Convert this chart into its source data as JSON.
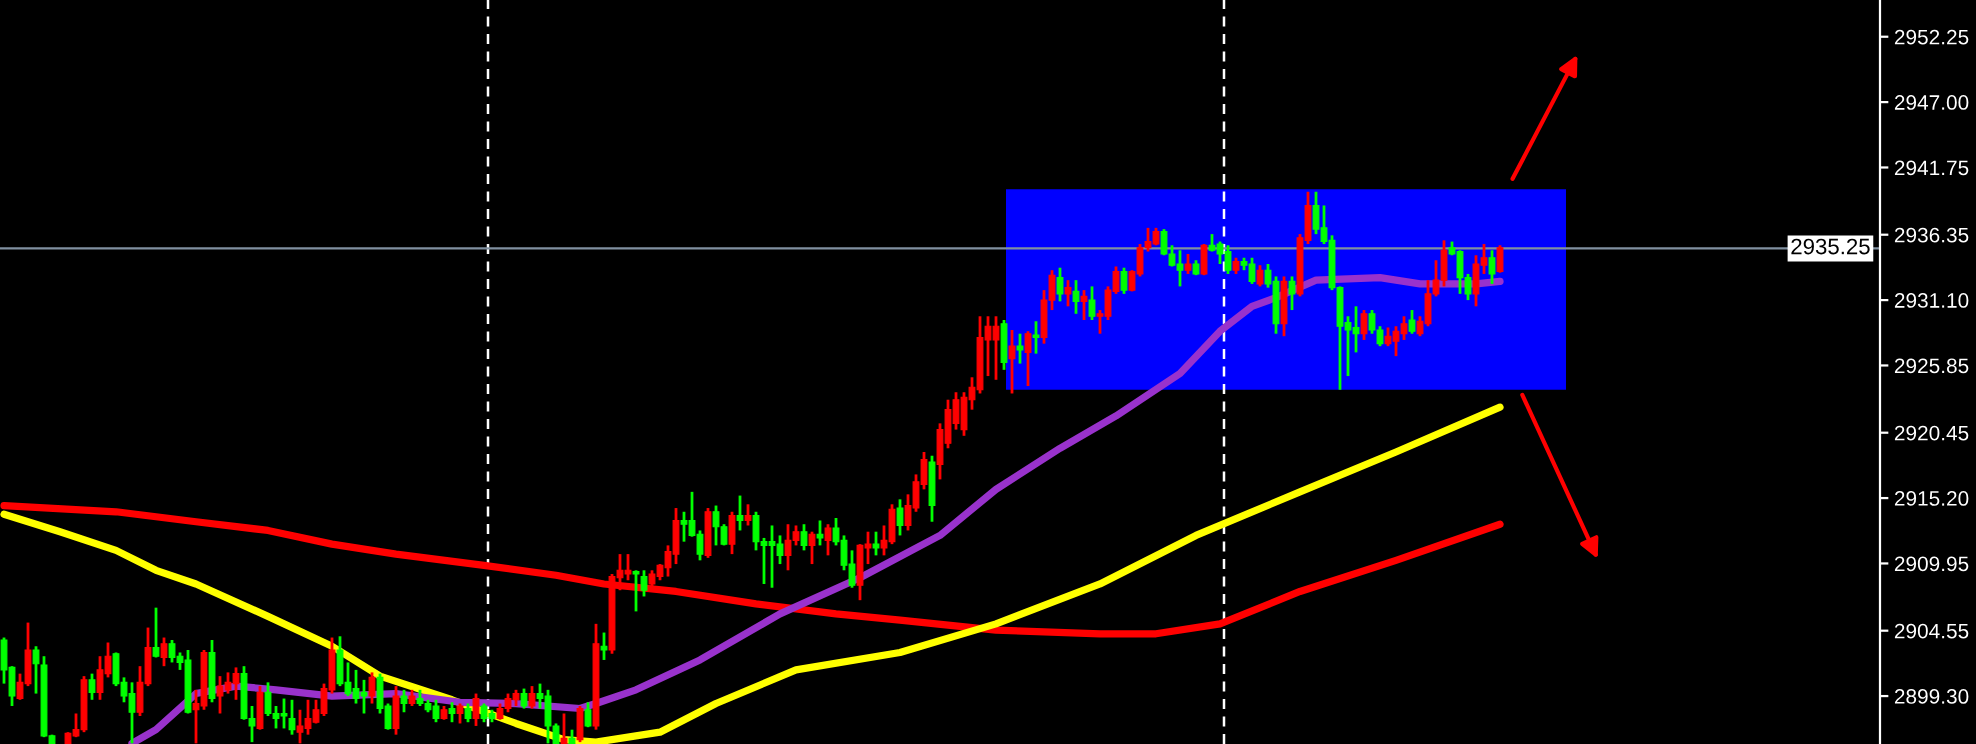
{
  "chart_data": {
    "type": "candlestick",
    "categories": [
      null,
      null,
      null,
      null,
      null,
      null,
      null,
      null,
      null,
      null,
      null,
      null,
      null,
      null,
      null,
      null,
      null,
      null,
      null,
      null,
      null,
      null,
      null,
      null,
      null,
      null,
      null,
      null,
      null,
      null,
      null,
      null,
      null,
      null,
      null,
      null,
      null,
      null,
      null,
      null,
      null,
      null,
      null,
      null,
      null,
      null,
      null,
      null,
      null,
      null,
      null,
      null,
      null,
      null,
      null,
      null,
      null,
      null,
      null,
      null,
      null,
      null,
      null,
      null,
      null,
      null,
      null,
      null,
      null,
      null,
      null,
      null,
      null,
      null,
      null,
      null,
      null,
      null,
      null,
      null,
      null,
      null,
      null,
      null,
      null,
      null,
      null,
      null,
      null,
      null,
      null,
      null,
      null,
      null,
      null,
      null,
      null,
      null,
      null,
      null,
      null,
      null,
      null,
      null,
      null,
      null,
      null,
      null,
      null,
      null,
      null,
      null,
      null,
      null,
      null,
      null,
      null,
      null,
      null,
      null,
      null,
      null,
      null,
      null,
      null,
      null,
      null,
      null,
      null,
      null,
      null,
      null,
      null,
      null,
      null,
      null,
      null,
      null,
      null,
      null,
      null,
      null,
      null,
      null,
      null,
      null,
      null,
      null,
      null,
      null,
      null,
      null,
      null,
      null,
      null,
      null,
      null,
      null,
      null,
      null,
      null,
      null,
      null,
      null,
      null,
      null,
      null,
      null,
      null,
      null,
      null,
      null,
      null,
      null,
      null,
      null,
      null,
      null,
      null,
      null,
      null,
      null,
      null,
      null,
      null,
      null,
      null,
      null,
      null,
      null,
      null,
      null,
      null,
      null,
      null,
      null,
      null,
      null,
      null,
      null,
      null,
      null,
      null,
      null,
      null,
      null,
      null,
      null,
      null,
      null,
      null,
      null,
      null,
      null,
      null,
      null,
      null,
      null,
      null,
      null,
      null,
      null,
      null,
      null,
      null,
      null,
      null,
      null,
      null,
      null,
      null,
      null,
      null,
      null,
      null
    ],
    "colors": [
      "#00ff00",
      "#00ff00",
      "#ff0000",
      "#ff0000",
      "#00ff00",
      "#00ff00",
      "#00ff00",
      null,
      "#ff0000",
      "#ff0000",
      "#ff0000",
      "#00ff00",
      "#ff0000",
      "#ff0000",
      "#00ff00",
      "#00ff00",
      "#00ff00",
      "#ff0000",
      "#ff0000",
      "#00ff00",
      "#ff0000",
      "#00ff00",
      "#00ff00",
      "#00ff00",
      "#ff0000",
      "#ff0000",
      "#00ff00",
      "#ff0000",
      "#ff0000",
      "#ff0000",
      "#00ff00",
      "#00ff00",
      "#ff0000",
      "#00ff00",
      "#00ff00",
      "#00ff00",
      "#00ff00",
      "#ff0000",
      "#ff0000",
      "#ff0000",
      "#ff0000",
      "#ff0000",
      "#00ff00",
      "#00ff00",
      "#00ff00",
      "#00ff00",
      "#ff0000",
      "#00ff00",
      "#00ff00",
      "#ff0000",
      "#00ff00",
      "#ff0000",
      "#00ff00",
      "#00ff00",
      "#00ff00",
      "#ff0000",
      "#00ff00",
      "#ff0000",
      "#00ff00",
      "#ff0000",
      "#00ff00",
      "#00ff00",
      "#ff0000",
      "#ff0000",
      "#ff0000",
      "#00ff00",
      "#ff0000",
      "#00ff00",
      "#00ff00",
      "#00ff00",
      "#ff0000",
      "#00ff00",
      "#ff0000",
      "#00ff00",
      "#ff0000",
      "#00ff00",
      "#ff0000",
      "#ff0000",
      "#ff0000",
      "#00ff00",
      "#00ff00",
      "#ff0000",
      "#ff0000",
      "#ff0000",
      "#ff0000",
      "#00ff00",
      "#00ff00",
      "#00ff00",
      "#ff0000",
      "#00ff00",
      "#00ff00",
      "#ff0000",
      "#00ff00",
      "#ff0000",
      "#00ff00",
      "#00ff00",
      "#00ff00",
      "#00ff00",
      "#ff0000",
      "#ff0000",
      "#00ff00",
      "#ff0000",
      "#00ff00",
      "#ff0000",
      "#00ff00",
      "#00ff00",
      "#00ff00",
      "#ff0000",
      "#ff0000",
      "#00ff00",
      "#ff0000",
      "#ff0000",
      "#00ff00",
      "#ff0000",
      "#ff0000",
      "#ff0000",
      "#00ff00",
      "#ff0000",
      "#ff0000",
      "#ff0000",
      "#ff0000",
      "#ff0000",
      "#ff0000",
      "#ff0000",
      "#ff0000",
      "#00ff00",
      "#ff0000",
      "#00ff00",
      "#ff0000",
      "#00ff00",
      "#ff0000",
      "#ff0000",
      "#00ff00",
      "#ff0000",
      "#00ff00",
      "#ff0000",
      "#00ff00",
      "#ff0000",
      "#ff0000",
      "#ff0000",
      "#00ff00",
      "#ff0000",
      "#ff0000",
      "#ff0000",
      "#ff0000",
      "#00ff00",
      "#00ff00",
      "#00ff00",
      "#ff0000",
      "#00ff00",
      "#ff0000",
      "#00ff00",
      "#00ff00",
      "#00ff00",
      "#ff0000",
      "#00ff00",
      "#00ff00",
      "#ff0000",
      "#00ff00",
      "#00ff00",
      "#ff0000",
      "#00ff00",
      "#ff0000",
      "#ff0000",
      "#00ff00",
      "#00ff00",
      "#00ff00",
      "#00ff00",
      "#00ff00",
      "#00ff00",
      "#ff0000",
      "#00ff00",
      "#00ff00",
      "#ff0000",
      "#ff0000",
      "#ff0000",
      "#00ff00",
      "#ff0000",
      "#ff0000",
      "#ff0000",
      "#ff0000",
      "#00ff00",
      "#00ff00",
      "#00ff00",
      "#ff0000",
      "#ff0000",
      "#00ff00",
      "#ff0000",
      null,
      null,
      null,
      null,
      null,
      null,
      null,
      null,
      null,
      null,
      null,
      null,
      null,
      null,
      null,
      null,
      null,
      null,
      null,
      null,
      null,
      null,
      null,
      null,
      null,
      null,
      null,
      null,
      null,
      null,
      null,
      null,
      null,
      null,
      null,
      null,
      null,
      null,
      null,
      null,
      null,
      null,
      null,
      null,
      null,
      null,
      null
    ],
    "ohlc": [
      [
        2901.4,
        2904.0,
        2900.3,
        2903.8
      ],
      [
        2899.3,
        2901.7,
        2898.5,
        2901.6
      ],
      [
        2900.4,
        2901.1,
        2899.0,
        2899.1
      ],
      [
        2903.0,
        2905.2,
        2900.1,
        2900.3
      ],
      [
        2901.9,
        2903.3,
        2899.5,
        2903.0
      ],
      [
        2896.1,
        2902.5,
        2896.0,
        2901.8
      ],
      [
        2895.5,
        2896.2,
        2895.5,
        2896.1
      ],
      null,
      [
        2896.3,
        2896.4,
        2895.5,
        2895.5
      ],
      [
        2896.6,
        2897.9,
        2896.0,
        2896.1
      ],
      [
        2900.6,
        2900.9,
        2896.4,
        2896.6
      ],
      [
        2899.6,
        2901.1,
        2899.0,
        2900.6
      ],
      [
        2901.4,
        2902.5,
        2899.0,
        2899.6
      ],
      [
        2902.5,
        2903.6,
        2900.8,
        2901.1
      ],
      [
        2900.3,
        2902.8,
        2900.1,
        2902.7
      ],
      [
        2899.3,
        2900.8,
        2898.8,
        2900.4
      ],
      [
        2898.0,
        2900.4,
        2895.5,
        2899.5
      ],
      [
        2900.4,
        2901.7,
        2897.7,
        2898.0
      ],
      [
        2903.2,
        2904.8,
        2900.1,
        2900.3
      ],
      [
        2902.5,
        2906.4,
        2902.4,
        2903.2
      ],
      [
        2903.5,
        2904.0,
        2901.7,
        2902.4
      ],
      [
        2902.4,
        2903.8,
        2902.0,
        2903.5
      ],
      [
        2902.0,
        2902.8,
        2901.4,
        2902.5
      ],
      [
        2898.0,
        2903.0,
        2897.9,
        2902.2
      ],
      [
        2898.7,
        2899.8,
        2895.5,
        2898.2
      ],
      [
        2902.8,
        2903.0,
        2898.2,
        2898.5
      ],
      [
        2899.1,
        2903.8,
        2898.8,
        2902.8
      ],
      [
        2900.1,
        2900.9,
        2897.9,
        2899.3
      ],
      [
        2900.4,
        2901.2,
        2899.5,
        2899.8
      ],
      [
        2901.1,
        2901.6,
        2899.0,
        2900.3
      ],
      [
        2897.5,
        2901.7,
        2897.4,
        2901.1
      ],
      [
        2896.9,
        2898.5,
        2895.6,
        2897.5
      ],
      [
        2899.6,
        2900.1,
        2896.6,
        2896.7
      ],
      [
        2897.9,
        2900.4,
        2897.7,
        2899.6
      ],
      [
        2897.5,
        2898.5,
        2896.7,
        2897.9
      ],
      [
        2897.7,
        2899.1,
        2896.7,
        2897.9
      ],
      [
        2896.6,
        2899.0,
        2896.2,
        2897.5
      ],
      [
        2896.9,
        2898.2,
        2895.5,
        2896.4
      ],
      [
        2897.5,
        2899.0,
        2896.2,
        2896.7
      ],
      [
        2898.2,
        2899.0,
        2897.1,
        2897.2
      ],
      [
        2899.9,
        2900.3,
        2897.7,
        2897.9
      ],
      [
        2903.0,
        2904.0,
        2899.5,
        2899.8
      ],
      [
        2900.3,
        2904.1,
        2900.1,
        2903.0
      ],
      [
        2899.5,
        2902.0,
        2899.3,
        2900.4
      ],
      [
        2899.1,
        2901.4,
        2898.7,
        2899.9
      ],
      [
        2899.3,
        2900.6,
        2897.9,
        2899.6
      ],
      [
        2900.8,
        2901.2,
        2898.7,
        2899.3
      ],
      [
        2898.3,
        2901.1,
        2897.9,
        2900.8
      ],
      [
        2896.7,
        2898.7,
        2896.6,
        2898.5
      ],
      [
        2899.3,
        2900.1,
        2896.2,
        2896.7
      ],
      [
        2898.7,
        2899.8,
        2898.0,
        2899.3
      ],
      [
        2899.3,
        2899.8,
        2898.5,
        2898.7
      ],
      [
        2898.7,
        2899.8,
        2898.5,
        2899.1
      ],
      [
        2898.2,
        2899.0,
        2898.0,
        2898.7
      ],
      [
        2897.5,
        2899.0,
        2897.2,
        2898.5
      ],
      [
        2898.2,
        2898.5,
        2897.4,
        2897.5
      ],
      [
        2897.9,
        2898.8,
        2897.2,
        2898.3
      ],
      [
        2898.5,
        2898.7,
        2897.1,
        2897.9
      ],
      [
        2897.5,
        2898.7,
        2897.2,
        2898.3
      ],
      [
        2899.1,
        2899.5,
        2896.9,
        2897.5
      ],
      [
        2897.5,
        2898.7,
        2897.2,
        2898.5
      ],
      [
        2897.5,
        2898.2,
        2897.2,
        2897.9
      ],
      [
        2898.3,
        2898.7,
        2897.4,
        2897.5
      ],
      [
        2899.1,
        2899.5,
        2898.0,
        2898.3
      ],
      [
        2899.5,
        2899.8,
        2898.5,
        2899.0
      ],
      [
        2898.5,
        2899.9,
        2898.3,
        2899.5
      ],
      [
        2899.5,
        2900.1,
        2898.3,
        2898.5
      ],
      [
        2899.1,
        2900.3,
        2898.3,
        2899.5
      ],
      [
        2896.9,
        2899.8,
        2895.5,
        2899.3
      ],
      [
        2895.5,
        2897.1,
        2895.5,
        2896.9
      ],
      [
        2895.9,
        2897.9,
        2895.5,
        2895.5
      ],
      [
        2895.5,
        2896.6,
        2895.5,
        2895.9
      ],
      [
        2898.3,
        2898.5,
        2895.6,
        2895.8
      ],
      [
        2896.9,
        2898.8,
        2896.8,
        2898.2
      ],
      [
        2903.5,
        2905.1,
        2896.6,
        2896.9
      ],
      [
        2903.0,
        2904.4,
        2902.2,
        2903.3
      ],
      [
        2908.9,
        2909.1,
        2902.7,
        2903.0
      ],
      [
        2909.4,
        2910.7,
        2907.8,
        2908.8
      ],
      [
        2909.4,
        2910.7,
        2908.6,
        2909.1
      ],
      [
        2909.1,
        2909.4,
        2906.1,
        2909.3
      ],
      [
        2907.8,
        2909.4,
        2907.3,
        2908.9
      ],
      [
        2909.1,
        2909.4,
        2908.1,
        2908.3
      ],
      [
        2909.8,
        2909.9,
        2908.6,
        2908.9
      ],
      [
        2910.9,
        2911.4,
        2908.9,
        2909.6
      ],
      [
        2913.4,
        2914.4,
        2909.9,
        2910.7
      ],
      [
        2913.1,
        2914.1,
        2911.7,
        2913.4
      ],
      [
        2912.2,
        2915.7,
        2912.1,
        2913.4
      ],
      [
        2910.7,
        2912.6,
        2910.2,
        2912.3
      ],
      [
        2914.1,
        2914.4,
        2910.4,
        2910.6
      ],
      [
        2912.9,
        2914.6,
        2911.4,
        2914.1
      ],
      [
        2911.5,
        2913.1,
        2911.4,
        2912.9
      ],
      [
        2913.8,
        2914.1,
        2910.7,
        2911.5
      ],
      [
        2913.4,
        2915.4,
        2912.6,
        2913.8
      ],
      [
        2913.8,
        2914.7,
        2913.0,
        2913.4
      ],
      [
        2911.7,
        2914.1,
        2911.0,
        2913.8
      ],
      [
        2911.4,
        2912.0,
        2908.3,
        2911.7
      ],
      [
        2911.4,
        2913.0,
        2908.0,
        2911.7
      ],
      [
        2910.6,
        2912.2,
        2909.9,
        2911.5
      ],
      [
        2911.8,
        2913.1,
        2909.4,
        2910.6
      ],
      [
        2912.5,
        2913.0,
        2911.4,
        2911.8
      ],
      [
        2911.4,
        2913.1,
        2911.0,
        2912.5
      ],
      [
        2912.3,
        2912.5,
        2909.9,
        2911.4
      ],
      [
        2912.0,
        2913.4,
        2911.4,
        2912.3
      ],
      [
        2912.8,
        2913.1,
        2910.6,
        2911.8
      ],
      [
        2911.7,
        2913.6,
        2911.4,
        2912.8
      ],
      [
        2909.8,
        2912.2,
        2909.4,
        2911.8
      ],
      [
        2908.2,
        2911.0,
        2908.0,
        2909.9
      ],
      [
        2911.4,
        2911.5,
        2907.0,
        2908.2
      ],
      [
        2911.5,
        2912.5,
        2909.9,
        2911.2
      ],
      [
        2911.2,
        2912.5,
        2910.6,
        2911.5
      ],
      [
        2911.8,
        2913.0,
        2910.6,
        2911.2
      ],
      [
        2914.3,
        2914.7,
        2911.5,
        2911.7
      ],
      [
        2913.0,
        2915.1,
        2912.2,
        2914.4
      ],
      [
        2914.6,
        2915.5,
        2912.6,
        2913.0
      ],
      [
        2916.5,
        2917.1,
        2914.1,
        2914.4
      ],
      [
        2918.3,
        2918.9,
        2915.9,
        2916.3
      ],
      [
        2914.6,
        2918.6,
        2913.3,
        2918.1
      ],
      [
        2920.7,
        2921.2,
        2916.7,
        2917.9
      ],
      [
        2922.3,
        2923.1,
        2919.2,
        2919.6
      ],
      [
        2923.1,
        2923.7,
        2920.7,
        2921.2
      ],
      [
        2923.3,
        2923.7,
        2920.2,
        2920.7
      ],
      [
        2924.1,
        2924.9,
        2922.3,
        2923.1
      ],
      [
        2928.1,
        2929.8,
        2923.6,
        2923.9
      ],
      [
        2929.0,
        2929.8,
        2925.0,
        2927.9
      ],
      [
        2929.0,
        2929.8,
        2924.7,
        2927.9
      ],
      [
        2926.1,
        2929.5,
        2925.5,
        2929.2
      ],
      [
        2927.4,
        2928.7,
        2923.6,
        2926.4
      ],
      [
        2927.1,
        2928.4,
        2926.0,
        2927.4
      ],
      [
        2928.4,
        2928.6,
        2924.2,
        2926.9
      ],
      [
        2928.1,
        2929.4,
        2926.8,
        2928.3
      ],
      [
        2931.1,
        2931.9,
        2927.6,
        2928.1
      ],
      [
        2933.1,
        2933.5,
        2930.3,
        2931.1
      ],
      [
        2931.6,
        2933.7,
        2931.0,
        2932.9
      ],
      [
        2932.1,
        2932.7,
        2930.6,
        2931.6
      ],
      [
        2931.0,
        2932.7,
        2930.0,
        2931.8
      ],
      [
        2931.4,
        2931.9,
        2929.5,
        2931.0
      ],
      [
        2929.8,
        2932.2,
        2929.5,
        2931.1
      ],
      [
        2930.0,
        2930.3,
        2928.4,
        2929.8
      ],
      [
        2931.9,
        2932.2,
        2929.5,
        2929.8
      ],
      [
        2933.4,
        2933.8,
        2931.6,
        2931.8
      ],
      [
        2931.9,
        2933.7,
        2931.6,
        2933.4
      ],
      [
        2933.4,
        2933.5,
        2931.8,
        2931.9
      ],
      [
        2935.3,
        2935.6,
        2933.0,
        2933.2
      ],
      [
        2935.8,
        2936.9,
        2935.0,
        2935.3
      ],
      [
        2936.6,
        2936.9,
        2935.5,
        2935.6
      ],
      [
        2934.8,
        2936.8,
        2934.7,
        2936.6
      ],
      [
        2933.9,
        2935.5,
        2933.8,
        2934.8
      ],
      [
        2933.5,
        2935.1,
        2932.2,
        2934.0
      ],
      [
        2934.0,
        2934.8,
        2933.2,
        2933.5
      ],
      [
        2933.2,
        2934.3,
        2933.1,
        2934.0
      ],
      [
        2935.5,
        2935.6,
        2933.1,
        2933.2
      ],
      [
        2935.1,
        2936.4,
        2935.0,
        2935.5
      ],
      [
        2934.8,
        2935.8,
        2934.0,
        2935.6
      ],
      [
        2933.5,
        2935.5,
        2933.2,
        2935.0
      ],
      [
        2934.2,
        2934.5,
        2933.2,
        2933.5
      ],
      [
        2933.9,
        2934.5,
        2933.5,
        2934.2
      ],
      [
        2932.6,
        2934.5,
        2932.4,
        2934.0
      ],
      [
        2933.5,
        2933.9,
        2932.2,
        2932.4
      ],
      [
        2932.4,
        2934.0,
        2932.1,
        2933.5
      ],
      [
        2929.2,
        2933.0,
        2928.4,
        2932.6
      ],
      [
        2932.6,
        2933.0,
        2928.2,
        2929.2
      ],
      [
        2931.6,
        2933.0,
        2930.3,
        2932.6
      ],
      [
        2936.1,
        2936.4,
        2931.4,
        2931.6
      ],
      [
        2938.7,
        2939.8,
        2935.6,
        2935.9
      ],
      [
        2936.8,
        2939.8,
        2936.4,
        2938.7
      ],
      [
        2935.8,
        2938.7,
        2935.6,
        2936.9
      ],
      [
        2932.1,
        2936.3,
        2931.9,
        2935.9
      ],
      [
        2929.0,
        2932.2,
        2923.9,
        2932.1
      ],
      [
        2928.7,
        2929.8,
        2925.0,
        2929.3
      ],
      [
        2928.4,
        2930.6,
        2926.9,
        2928.9
      ],
      [
        2930.0,
        2930.3,
        2927.9,
        2928.4
      ],
      [
        2928.7,
        2930.3,
        2928.4,
        2930.0
      ],
      [
        2927.6,
        2929.0,
        2927.4,
        2928.7
      ],
      [
        2928.2,
        2928.9,
        2927.4,
        2927.6
      ],
      [
        2928.6,
        2929.0,
        2926.6,
        2927.8
      ],
      [
        2929.2,
        2929.8,
        2927.9,
        2928.4
      ],
      [
        2928.6,
        2930.3,
        2928.4,
        2929.5
      ],
      [
        2929.4,
        2929.8,
        2928.2,
        2928.4
      ],
      [
        2931.6,
        2932.7,
        2929.0,
        2929.2
      ],
      [
        2932.7,
        2934.3,
        2931.4,
        2931.6
      ],
      [
        2935.1,
        2935.9,
        2932.2,
        2932.7
      ],
      [
        2934.8,
        2935.8,
        2934.7,
        2935.3
      ],
      [
        2932.9,
        2935.1,
        2931.6,
        2935.0
      ],
      [
        2931.6,
        2933.2,
        2931.1,
        2932.9
      ],
      [
        2934.0,
        2934.7,
        2930.6,
        2931.6
      ],
      [
        2934.5,
        2935.6,
        2933.2,
        2933.9
      ],
      [
        2933.2,
        2935.1,
        2932.4,
        2934.5
      ],
      [
        2935.3,
        2935.5,
        2933.3,
        2933.4
      ],
      null,
      null,
      null,
      null,
      null,
      null,
      null,
      null,
      null,
      null,
      null,
      null,
      null,
      null,
      null,
      null,
      null,
      null,
      null,
      null,
      null,
      null,
      null,
      null,
      null,
      null,
      null,
      null,
      null,
      null,
      null,
      null,
      null,
      null,
      null,
      null,
      null,
      null,
      null,
      null,
      null,
      null,
      null,
      null,
      null,
      null,
      null
    ],
    "series": [
      {
        "type": "line",
        "color": "#ff0000",
        "values": [
          2914.6,
          null,
          null,
          null,
          null,
          null,
          null,
          null,
          null,
          null,
          null,
          null,
          null,
          null,
          2914.1,
          null,
          null,
          null,
          null,
          null,
          null,
          null,
          null,
          null,
          2913.3,
          null,
          null,
          null,
          null,
          null,
          null,
          null,
          null,
          2912.6,
          null,
          null,
          null,
          null,
          null,
          null,
          null,
          2911.5,
          null,
          null,
          null,
          null,
          null,
          null,
          null,
          2910.7,
          null,
          null,
          null,
          null,
          null,
          null,
          null,
          null,
          null,
          null,
          2909.8,
          null,
          null,
          null,
          null,
          null,
          null,
          null,
          null,
          2909.0,
          null,
          null,
          null,
          null,
          null,
          2908.3,
          null,
          null,
          null,
          null,
          null,
          null,
          null,
          null,
          2907.7,
          null,
          null,
          null,
          null,
          null,
          null,
          null,
          null,
          null,
          2906.7,
          null,
          null,
          null,
          null,
          null,
          null,
          null,
          null,
          null,
          2905.9,
          null,
          null,
          null,
          null,
          null,
          null,
          null,
          2905.4,
          null,
          null,
          null,
          null,
          null,
          null,
          null,
          null,
          null,
          null,
          null,
          2904.6,
          null,
          null,
          null,
          null,
          null,
          null,
          null,
          null,
          null,
          null,
          null,
          null,
          2904.3,
          null,
          null,
          null,
          null,
          null,
          null,
          2904.3,
          null,
          null,
          null,
          null,
          null,
          null,
          null,
          2905.1,
          null,
          null,
          null,
          null,
          null,
          null,
          null,
          null,
          null,
          2907.7,
          null,
          null,
          null,
          null,
          null,
          null,
          null,
          null,
          null,
          null,
          null,
          2910.2,
          null,
          null,
          null,
          null,
          null,
          null,
          null,
          null,
          null,
          null,
          null,
          null,
          2913.1,
          null,
          null,
          null,
          null,
          null,
          null,
          null,
          null,
          null,
          null,
          null,
          null,
          null,
          null,
          null,
          null,
          null,
          null,
          null,
          null,
          null,
          null,
          null,
          null,
          null,
          null,
          null,
          null,
          null,
          null,
          null,
          null,
          null,
          null,
          null,
          null,
          null,
          null,
          null,
          null,
          null,
          null,
          null,
          null,
          null,
          null,
          null
        ]
      },
      {
        "type": "line",
        "color": "#ffff00",
        "values": [
          2913.9,
          null,
          null,
          null,
          null,
          null,
          null,
          2912.5,
          null,
          null,
          null,
          null,
          null,
          null,
          2911.0,
          null,
          null,
          null,
          null,
          2909.4,
          null,
          null,
          null,
          null,
          2908.3,
          null,
          null,
          null,
          null,
          null,
          null,
          null,
          null,
          2905.7,
          null,
          null,
          null,
          null,
          null,
          null,
          null,
          2903.3,
          null,
          null,
          null,
          null,
          null,
          2900.9,
          null,
          null,
          null,
          null,
          null,
          null,
          null,
          null,
          2899.0,
          null,
          null,
          null,
          null,
          null,
          null,
          null,
          2897.1,
          null,
          null,
          null,
          null,
          null,
          2895.8,
          null,
          null,
          null,
          2895.6,
          null,
          null,
          null,
          null,
          null,
          null,
          null,
          2896.4,
          null,
          null,
          null,
          null,
          null,
          null,
          2898.7,
          null,
          null,
          null,
          null,
          null,
          null,
          null,
          null,
          null,
          2901.4,
          null,
          null,
          null,
          null,
          null,
          null,
          null,
          null,
          null,
          null,
          null,
          null,
          2902.8,
          null,
          null,
          null,
          null,
          null,
          null,
          null,
          null,
          null,
          null,
          null,
          2905.1,
          null,
          null,
          null,
          null,
          null,
          null,
          null,
          null,
          null,
          null,
          null,
          null,
          2908.3,
          null,
          null,
          null,
          null,
          null,
          null,
          null,
          null,
          null,
          null,
          null,
          2912.2,
          null,
          null,
          null,
          null,
          null,
          null,
          null,
          null,
          null,
          null,
          null,
          null,
          2915.7,
          null,
          null,
          null,
          null,
          null,
          null,
          null,
          null,
          null,
          null,
          null,
          2918.9,
          null,
          null,
          null,
          null,
          null,
          null,
          null,
          null,
          null,
          null,
          null,
          null,
          2922.5,
          null,
          null,
          null,
          null,
          null,
          null,
          null,
          null,
          null,
          null,
          null,
          null,
          null,
          null,
          null,
          null,
          null,
          null,
          null,
          null,
          null,
          null,
          null,
          null,
          null,
          null,
          null,
          null,
          null,
          null,
          null,
          null,
          null,
          null,
          null,
          null,
          null,
          null,
          null,
          null,
          null,
          null,
          null,
          null,
          null,
          null,
          null
        ]
      },
      {
        "type": "line",
        "color": "#9932cc",
        "values": [
          null,
          null,
          null,
          null,
          null,
          null,
          null,
          null,
          null,
          null,
          null,
          null,
          null,
          null,
          null,
          null,
          2895.5,
          null,
          null,
          2896.6,
          null,
          null,
          null,
          null,
          2899.5,
          null,
          null,
          null,
          null,
          2900.1,
          null,
          null,
          null,
          null,
          2899.8,
          null,
          null,
          null,
          null,
          null,
          null,
          2899.3,
          null,
          null,
          null,
          null,
          null,
          null,
          null,
          2899.5,
          null,
          null,
          null,
          null,
          null,
          null,
          null,
          2898.8,
          null,
          null,
          null,
          null,
          null,
          null,
          2898.7,
          null,
          null,
          null,
          null,
          null,
          null,
          null,
          2898.3,
          null,
          2898.7,
          null,
          null,
          null,
          null,
          2899.8,
          null,
          null,
          null,
          null,
          null,
          null,
          null,
          2902.2,
          null,
          null,
          null,
          null,
          null,
          null,
          null,
          null,
          null,
          2905.9,
          null,
          null,
          null,
          null,
          null,
          null,
          null,
          null,
          null,
          2908.8,
          null,
          null,
          null,
          null,
          null,
          null,
          null,
          null,
          null,
          2912.2,
          null,
          null,
          null,
          null,
          null,
          null,
          2915.9,
          null,
          null,
          null,
          null,
          null,
          null,
          null,
          2919.2,
          null,
          null,
          null,
          null,
          null,
          null,
          2921.8,
          null,
          null,
          null,
          null,
          null,
          null,
          null,
          2925.2,
          null,
          null,
          null,
          null,
          2928.6,
          null,
          null,
          null,
          2930.6,
          null,
          null,
          2931.3,
          null,
          null,
          null,
          null,
          2932.7,
          null,
          null,
          null,
          null,
          null,
          null,
          null,
          2932.9,
          null,
          null,
          null,
          null,
          2932.4,
          null,
          null,
          null,
          null,
          null,
          null,
          2932.4,
          null,
          null,
          2932.6,
          null,
          null,
          null,
          null,
          null,
          null,
          null,
          null,
          null,
          null,
          null,
          null,
          null,
          null,
          null,
          null,
          null,
          null,
          null,
          null,
          null,
          null,
          null,
          null,
          null,
          null,
          null,
          null,
          null,
          null,
          null,
          null,
          null,
          null,
          null,
          null,
          null,
          null,
          null,
          null,
          null,
          null,
          null,
          null,
          null,
          null,
          null
        ]
      }
    ],
    "ylim": [
      2895.45,
      2955.2
    ],
    "yticks": [
      2952.25,
      {
        "value": 2947,
        "label": "2947.00"
      },
      2941.75,
      2936.35,
      {
        "value": 2931.1,
        "label": "2931.10"
      },
      2925.85,
      2920.45,
      {
        "value": 2915.2,
        "label": "2915.20"
      },
      2909.95,
      2904.55,
      {
        "value": 2899.3,
        "label": "2899.30"
      }
    ],
    "tick_labels": "y",
    "grid": false,
    "legend": false,
    "ref_lines": [
      {
        "axis": "y",
        "value": 2935.25,
        "label": "2935.25",
        "color": "#8090a0"
      }
    ],
    "bands": [
      {
        "axis": "y",
        "from": 2923.9,
        "to": 2940.0,
        "color": "#0000ff"
      }
    ]
  }
}
